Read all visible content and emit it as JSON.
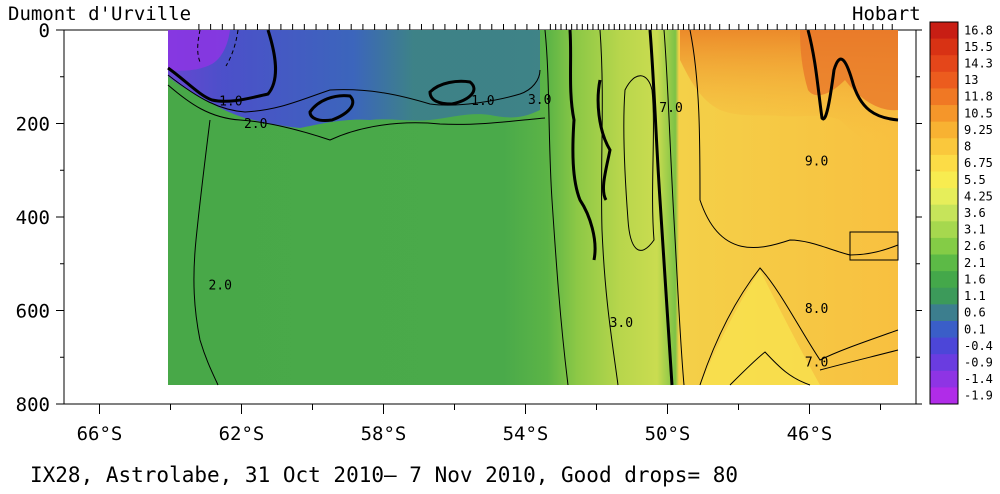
{
  "chart_data": {
    "type": "heatmap",
    "title": "",
    "left_label": "Dumont d'Urville",
    "right_label": "Hobart",
    "footer": "IX28, Astrolabe, 31 Oct 2010– 7 Nov 2010, Good drops= 80",
    "xlabel": "",
    "ylabel": "",
    "x_ticks": [
      "66°S",
      "62°S",
      "58°S",
      "54°S",
      "50°S",
      "46°S"
    ],
    "x_tick_values": [
      -66,
      -62,
      -58,
      -54,
      -50,
      -46
    ],
    "xlim": [
      -67,
      -43
    ],
    "y_ticks": [
      "0",
      "200",
      "400",
      "600",
      "800"
    ],
    "y_tick_values": [
      0,
      200,
      400,
      600,
      800
    ],
    "ylim": [
      0,
      800
    ],
    "colorbar_labels": [
      "16.8",
      "15.5",
      "14.3",
      "13",
      "11.8",
      "10.5",
      "9.25",
      "8",
      "6.75",
      "5.5",
      "4.25",
      "3.6",
      "3.1",
      "2.6",
      "2.1",
      "1.6",
      "1.1",
      "0.6",
      "0.1",
      "-0.4",
      "-0.9",
      "-1.4",
      "-1.9"
    ],
    "colorbar_colors": [
      "#c81e14",
      "#d83214",
      "#e4461a",
      "#ec5c1e",
      "#f07824",
      "#f5962a",
      "#f8b232",
      "#fac83c",
      "#fcdc46",
      "#f8ec50",
      "#e6ee5a",
      "#c6e45a",
      "#a6d84e",
      "#84cc46",
      "#5cba46",
      "#44a84a",
      "#3c9a5a",
      "#3c7e8e",
      "#3a5ec8",
      "#4c46d8",
      "#6a3ce0",
      "#8e34e4",
      "#b02ce8"
    ],
    "contour_labels": [
      {
        "text": "1.0",
        "lon": -62.3,
        "depth": 162
      },
      {
        "text": "2.0",
        "lon": -61.6,
        "depth": 210
      },
      {
        "text": "1.0",
        "lon": -55.2,
        "depth": 160
      },
      {
        "text": "3.0",
        "lon": -53.6,
        "depth": 158
      },
      {
        "text": "7.0",
        "lon": -49.9,
        "depth": 175
      },
      {
        "text": "9.0",
        "lon": -45.8,
        "depth": 290
      },
      {
        "text": "2.0",
        "lon": -62.6,
        "depth": 555
      },
      {
        "text": "8.0",
        "lon": -45.8,
        "depth": 605
      },
      {
        "text": "3.0",
        "lon": -51.3,
        "depth": 635
      },
      {
        "text": "7.0",
        "lon": -45.8,
        "depth": 720
      }
    ]
  }
}
